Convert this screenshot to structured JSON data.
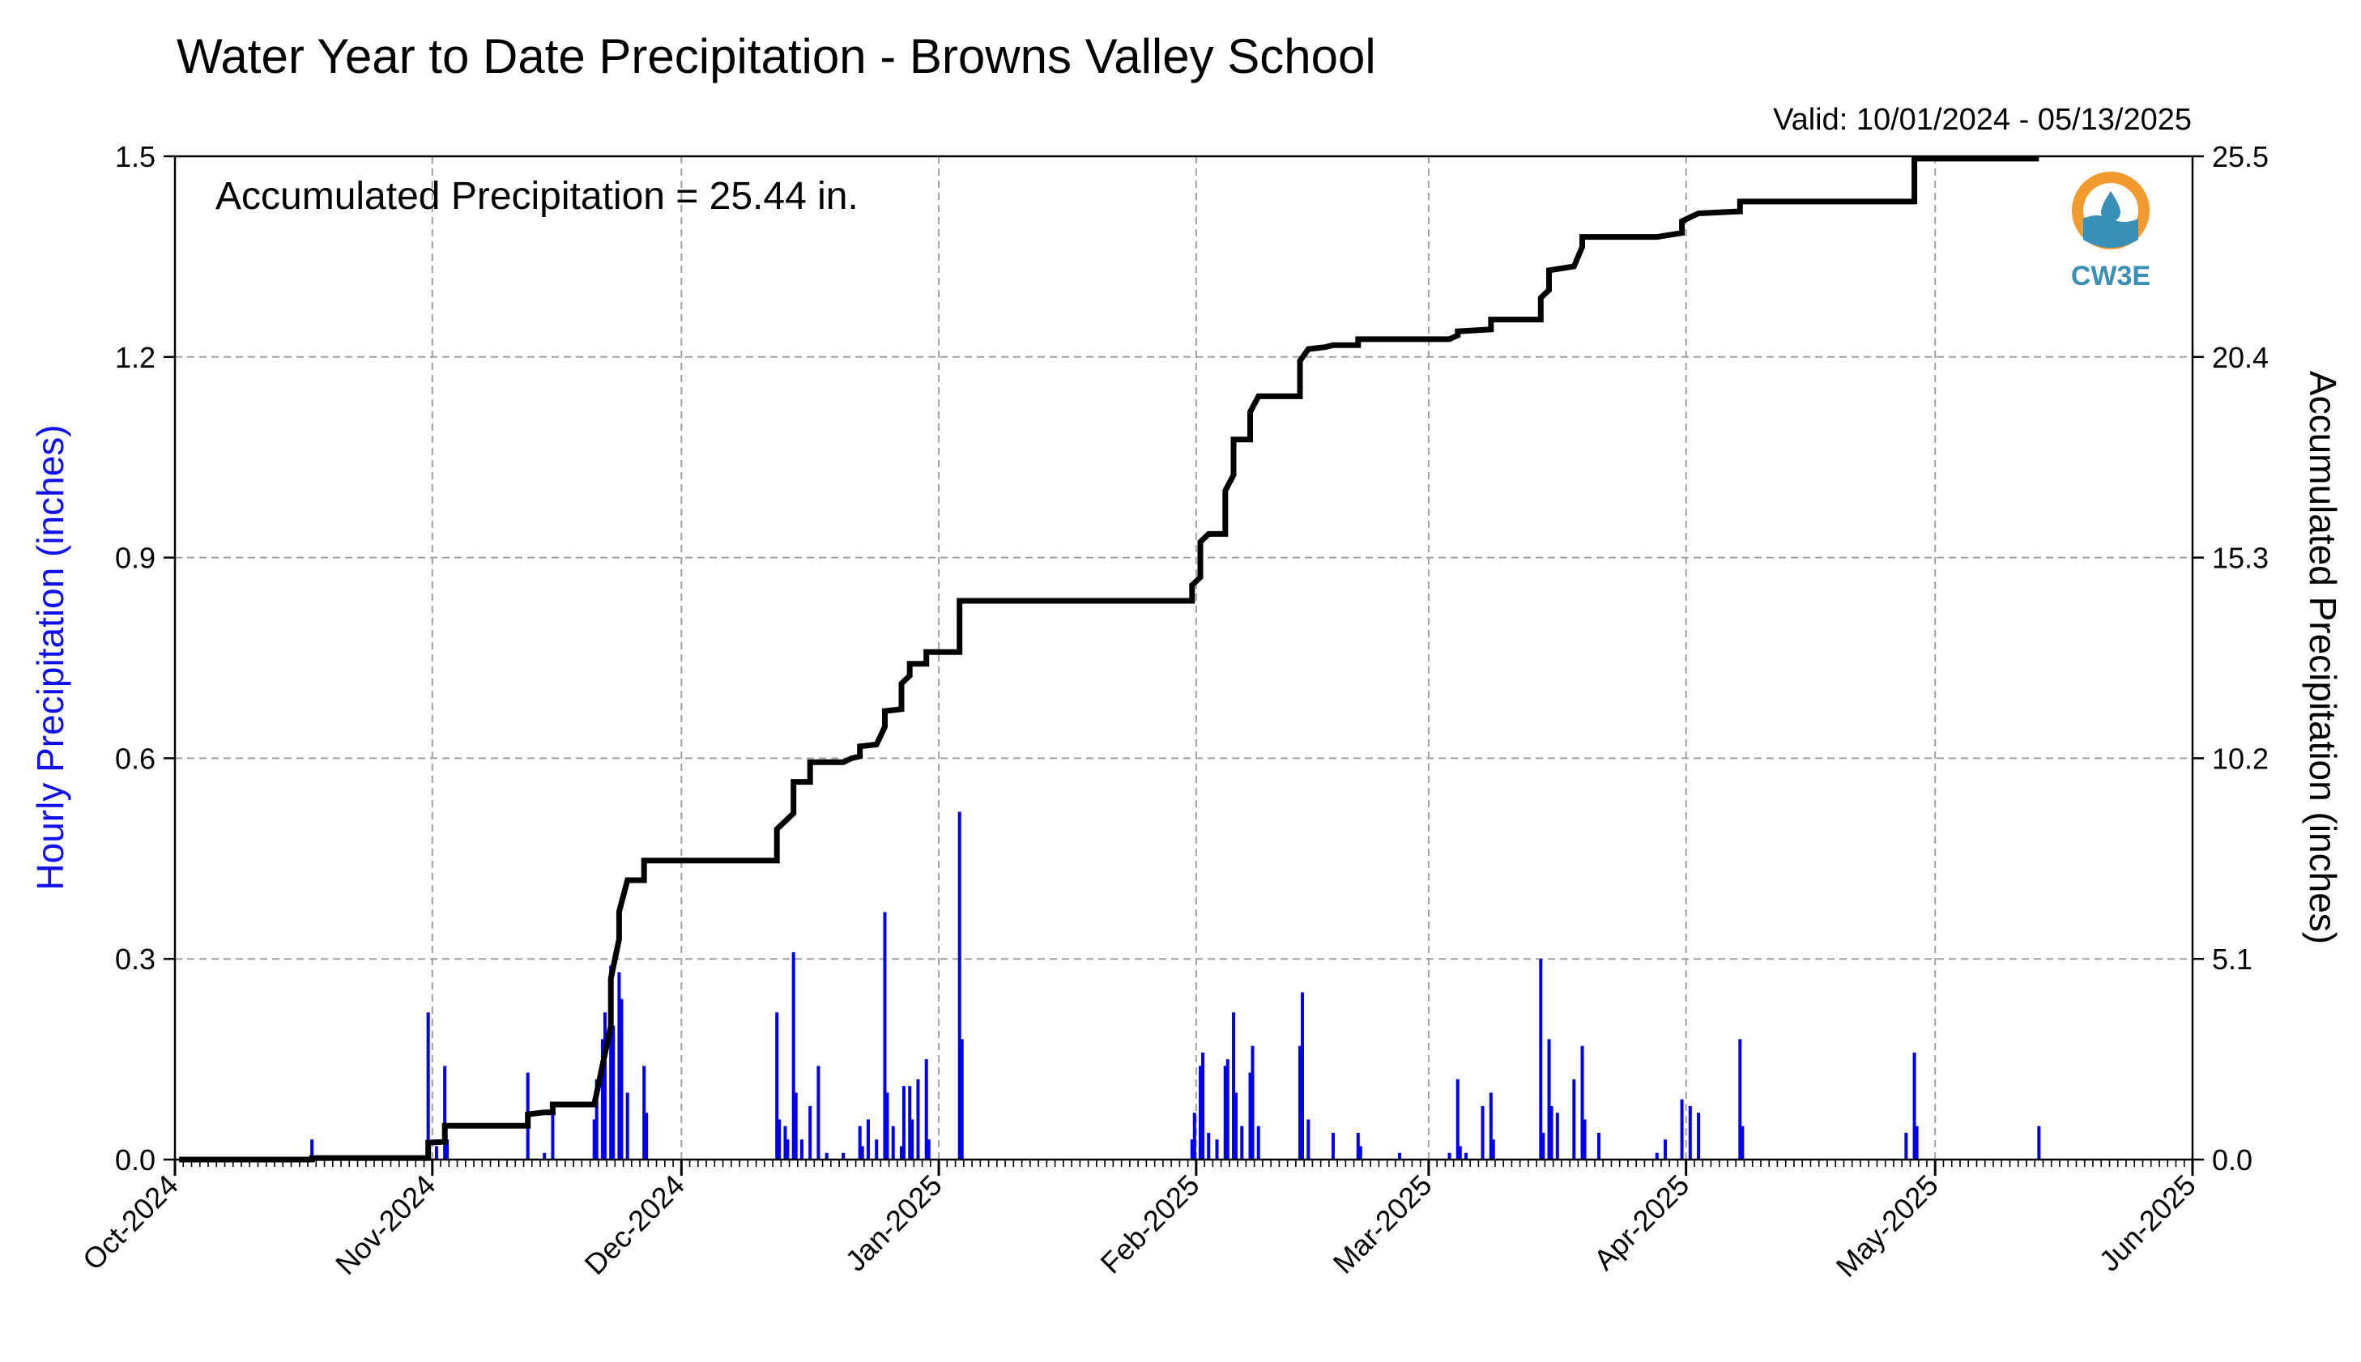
{
  "chart_data": {
    "type": "bar+line",
    "title": "Water Year to Date Precipitation - Browns Valley School",
    "subtitle": "Valid: 10/01/2024 - 05/13/2025",
    "annotation": "Accumulated Precipitation = 25.44 in.",
    "ylabel_left": "Hourly Precipitation (inches)",
    "ylabel_right": "Accumulated Precipitation (inches)",
    "x_range": [
      "2024-10-01",
      "2025-06-01"
    ],
    "ylim_left": [
      0,
      1.5
    ],
    "ylim_right": [
      0,
      25.5
    ],
    "x_ticks": [
      "Oct-2024",
      "Nov-2024",
      "Dec-2024",
      "Jan-2025",
      "Feb-2025",
      "Mar-2025",
      "Apr-2025",
      "May-2025",
      "Jun-2025"
    ],
    "x_tick_dates": [
      "2024-10-01",
      "2024-11-01",
      "2024-12-01",
      "2025-01-01",
      "2025-02-01",
      "2025-03-01",
      "2025-04-01",
      "2025-05-01",
      "2025-06-01"
    ],
    "y_ticks_left": [
      "0.0",
      "0.3",
      "0.6",
      "0.9",
      "1.2",
      "1.5"
    ],
    "y_ticks_right": [
      "0.0",
      "5.1",
      "10.2",
      "15.3",
      "20.4",
      "25.5"
    ],
    "grid": true,
    "colors": {
      "hourly": "#0000ee",
      "accumulated": "#000000",
      "grid": "#a0a0a0"
    },
    "logo_text": "CW3E",
    "hourly_series": {
      "name": "Hourly Precipitation",
      "points": [
        [
          "2024-10-17",
          0.03
        ],
        [
          "2024-10-31",
          0.22
        ],
        [
          "2024-11-01",
          0.02
        ],
        [
          "2024-11-02",
          0.14
        ],
        [
          "2024-11-02",
          0.03
        ],
        [
          "2024-11-12",
          0.13
        ],
        [
          "2024-11-14",
          0.01
        ],
        [
          "2024-11-15",
          0.07
        ],
        [
          "2024-11-20",
          0.06
        ],
        [
          "2024-11-20",
          0.12
        ],
        [
          "2024-11-21",
          0.18
        ],
        [
          "2024-11-21",
          0.22
        ],
        [
          "2024-11-22",
          0.29
        ],
        [
          "2024-11-22",
          0.2
        ],
        [
          "2024-11-23",
          0.28
        ],
        [
          "2024-11-23",
          0.24
        ],
        [
          "2024-11-24",
          0.1
        ],
        [
          "2024-11-26",
          0.14
        ],
        [
          "2024-11-26",
          0.07
        ],
        [
          "2024-12-12",
          0.22
        ],
        [
          "2024-12-12",
          0.06
        ],
        [
          "2024-12-13",
          0.05
        ],
        [
          "2024-12-13",
          0.03
        ],
        [
          "2024-12-14",
          0.31
        ],
        [
          "2024-12-14",
          0.1
        ],
        [
          "2024-12-15",
          0.03
        ],
        [
          "2024-12-16",
          0.08
        ],
        [
          "2024-12-17",
          0.14
        ],
        [
          "2024-12-18",
          0.01
        ],
        [
          "2024-12-20",
          0.01
        ],
        [
          "2024-12-22",
          0.05
        ],
        [
          "2024-12-22",
          0.02
        ],
        [
          "2024-12-23",
          0.06
        ],
        [
          "2024-12-24",
          0.03
        ],
        [
          "2024-12-25",
          0.37
        ],
        [
          "2024-12-25",
          0.1
        ],
        [
          "2024-12-26",
          0.05
        ],
        [
          "2024-12-27",
          0.02
        ],
        [
          "2024-12-27",
          0.11
        ],
        [
          "2024-12-28",
          0.11
        ],
        [
          "2024-12-28",
          0.06
        ],
        [
          "2024-12-29",
          0.12
        ],
        [
          "2024-12-30",
          0.15
        ],
        [
          "2024-12-30",
          0.03
        ],
        [
          "2025-01-03",
          0.52
        ],
        [
          "2025-01-03",
          0.18
        ],
        [
          "2025-01-31",
          0.03
        ],
        [
          "2025-01-31",
          0.07
        ],
        [
          "2025-02-01",
          0.14
        ],
        [
          "2025-02-01",
          0.16
        ],
        [
          "2025-02-02",
          0.04
        ],
        [
          "2025-02-03",
          0.03
        ],
        [
          "2025-02-04",
          0.14
        ],
        [
          "2025-02-04",
          0.15
        ],
        [
          "2025-02-05",
          0.22
        ],
        [
          "2025-02-05",
          0.1
        ],
        [
          "2025-02-06",
          0.05
        ],
        [
          "2025-02-07",
          0.13
        ],
        [
          "2025-02-07",
          0.17
        ],
        [
          "2025-02-08",
          0.05
        ],
        [
          "2025-02-13",
          0.17
        ],
        [
          "2025-02-13",
          0.25
        ],
        [
          "2025-02-14",
          0.06
        ],
        [
          "2025-02-17",
          0.04
        ],
        [
          "2025-02-20",
          0.04
        ],
        [
          "2025-02-20",
          0.02
        ],
        [
          "2025-02-25",
          0.01
        ],
        [
          "2025-03-03",
          0.01
        ],
        [
          "2025-03-04",
          0.12
        ],
        [
          "2025-03-04",
          0.02
        ],
        [
          "2025-03-05",
          0.01
        ],
        [
          "2025-03-07",
          0.08
        ],
        [
          "2025-03-08",
          0.1
        ],
        [
          "2025-03-08",
          0.03
        ],
        [
          "2025-03-14",
          0.3
        ],
        [
          "2025-03-14",
          0.04
        ],
        [
          "2025-03-15",
          0.18
        ],
        [
          "2025-03-15",
          0.08
        ],
        [
          "2025-03-16",
          0.07
        ],
        [
          "2025-03-18",
          0.12
        ],
        [
          "2025-03-19",
          0.17
        ],
        [
          "2025-03-19",
          0.06
        ],
        [
          "2025-03-21",
          0.04
        ],
        [
          "2025-03-28",
          0.01
        ],
        [
          "2025-03-29",
          0.03
        ],
        [
          "2025-03-31",
          0.09
        ],
        [
          "2025-04-01",
          0.08
        ],
        [
          "2025-04-02",
          0.07
        ],
        [
          "2025-04-07",
          0.18
        ],
        [
          "2025-04-07",
          0.05
        ],
        [
          "2025-04-27",
          0.04
        ],
        [
          "2025-04-28",
          0.16
        ],
        [
          "2025-04-28",
          0.05
        ],
        [
          "2025-05-13",
          0.05
        ]
      ]
    },
    "accumulated_series": {
      "name": "Accumulated Precipitation",
      "points": [
        [
          "2024-10-01",
          0.0
        ],
        [
          "2024-10-17",
          0.0
        ],
        [
          "2024-10-17",
          0.04
        ],
        [
          "2024-10-31",
          0.04
        ],
        [
          "2024-10-31",
          0.43
        ],
        [
          "2024-11-02",
          0.45
        ],
        [
          "2024-11-02",
          0.86
        ],
        [
          "2024-11-12",
          0.86
        ],
        [
          "2024-11-12",
          1.15
        ],
        [
          "2024-11-14",
          1.2
        ],
        [
          "2024-11-15",
          1.2
        ],
        [
          "2024-11-15",
          1.4
        ],
        [
          "2024-11-20",
          1.4
        ],
        [
          "2024-11-21",
          2.4
        ],
        [
          "2024-11-22",
          3.4
        ],
        [
          "2024-11-22",
          4.6
        ],
        [
          "2024-11-23",
          5.6
        ],
        [
          "2024-11-23",
          6.3
        ],
        [
          "2024-11-24",
          7.1
        ],
        [
          "2024-11-26",
          7.1
        ],
        [
          "2024-11-26",
          7.6
        ],
        [
          "2024-12-12",
          7.6
        ],
        [
          "2024-12-12",
          8.4
        ],
        [
          "2024-12-13",
          8.6
        ],
        [
          "2024-12-14",
          8.8
        ],
        [
          "2024-12-14",
          9.6
        ],
        [
          "2024-12-16",
          9.6
        ],
        [
          "2024-12-16",
          10.1
        ],
        [
          "2024-12-20",
          10.1
        ],
        [
          "2024-12-21",
          10.2
        ],
        [
          "2024-12-22",
          10.25
        ],
        [
          "2024-12-22",
          10.5
        ],
        [
          "2024-12-24",
          10.55
        ],
        [
          "2024-12-25",
          11.0
        ],
        [
          "2024-12-25",
          11.4
        ],
        [
          "2024-12-27",
          11.45
        ],
        [
          "2024-12-27",
          12.1
        ],
        [
          "2024-12-28",
          12.3
        ],
        [
          "2024-12-28",
          12.6
        ],
        [
          "2024-12-30",
          12.6
        ],
        [
          "2024-12-30",
          12.9
        ],
        [
          "2025-01-03",
          12.9
        ],
        [
          "2025-01-03",
          14.2
        ],
        [
          "2025-01-31",
          14.2
        ],
        [
          "2025-01-31",
          14.6
        ],
        [
          "2025-02-01",
          14.8
        ],
        [
          "2025-02-01",
          15.7
        ],
        [
          "2025-02-02",
          15.9
        ],
        [
          "2025-02-04",
          15.9
        ],
        [
          "2025-02-04",
          17.0
        ],
        [
          "2025-02-05",
          17.4
        ],
        [
          "2025-02-05",
          18.3
        ],
        [
          "2025-02-07",
          18.3
        ],
        [
          "2025-02-07",
          19.0
        ],
        [
          "2025-02-08",
          19.4
        ],
        [
          "2025-02-13",
          19.4
        ],
        [
          "2025-02-13",
          20.3
        ],
        [
          "2025-02-14",
          20.6
        ],
        [
          "2025-02-16",
          20.65
        ],
        [
          "2025-02-17",
          20.7
        ],
        [
          "2025-02-20",
          20.7
        ],
        [
          "2025-02-20",
          20.85
        ],
        [
          "2025-03-03",
          20.85
        ],
        [
          "2025-03-04",
          20.95
        ],
        [
          "2025-03-04",
          21.05
        ],
        [
          "2025-03-08",
          21.1
        ],
        [
          "2025-03-08",
          21.35
        ],
        [
          "2025-03-14",
          21.35
        ],
        [
          "2025-03-14",
          21.9
        ],
        [
          "2025-03-15",
          22.1
        ],
        [
          "2025-03-15",
          22.6
        ],
        [
          "2025-03-18",
          22.7
        ],
        [
          "2025-03-19",
          23.2
        ],
        [
          "2025-03-19",
          23.45
        ],
        [
          "2025-03-28",
          23.45
        ],
        [
          "2025-03-31",
          23.55
        ],
        [
          "2025-03-31",
          23.85
        ],
        [
          "2025-04-01",
          23.95
        ],
        [
          "2025-04-02",
          24.05
        ],
        [
          "2025-04-07",
          24.1
        ],
        [
          "2025-04-07",
          24.35
        ],
        [
          "2025-04-28",
          24.35
        ],
        [
          "2025-04-28",
          25.44
        ],
        [
          "2025-05-13",
          25.44
        ]
      ]
    }
  }
}
